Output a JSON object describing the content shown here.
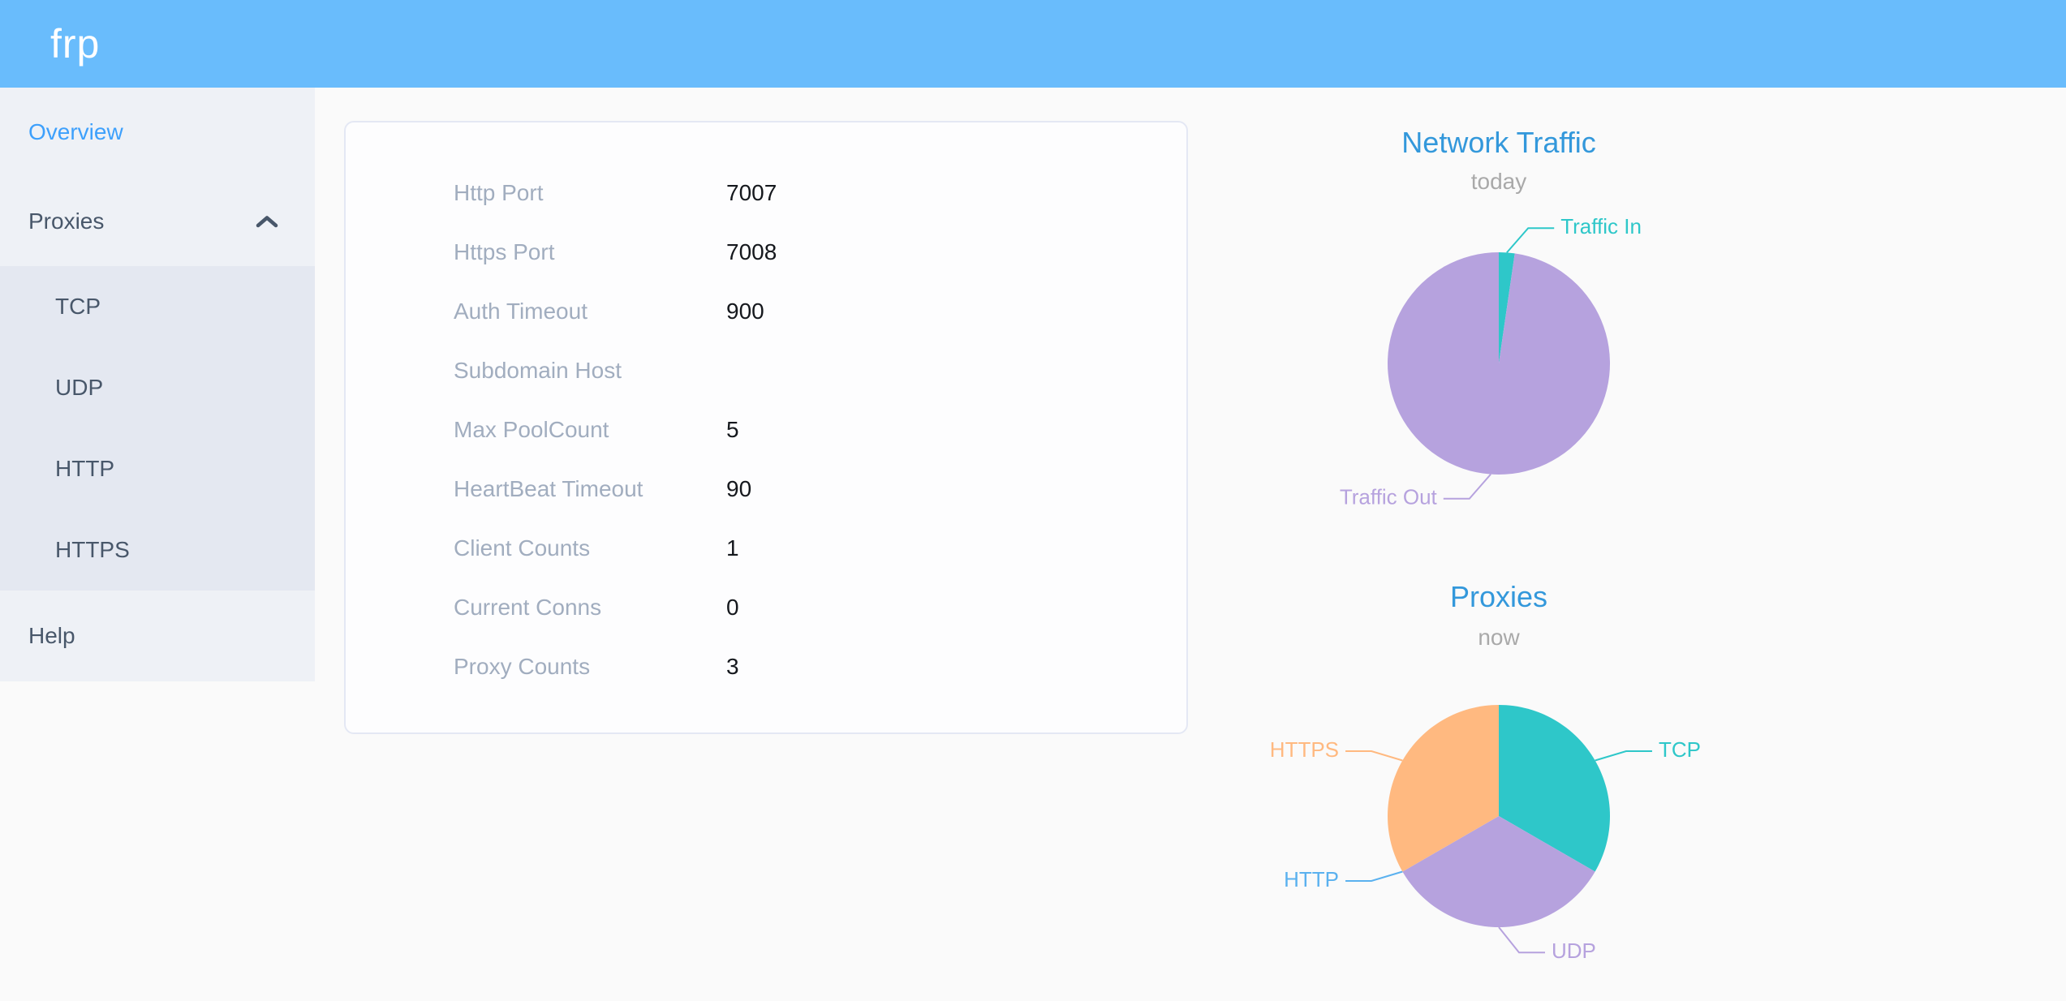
{
  "header": {
    "logo_text": "frp",
    "background_color": "#69bcfc"
  },
  "sidebar": {
    "items": [
      {
        "label": "Overview",
        "active": true
      },
      {
        "label": "Proxies",
        "expanded": true,
        "children": [
          "TCP",
          "UDP",
          "HTTP",
          "HTTPS"
        ]
      },
      {
        "label": "Help"
      }
    ]
  },
  "overview": {
    "rows": [
      {
        "label": "Http Port",
        "value": "7007"
      },
      {
        "label": "Https Port",
        "value": "7008"
      },
      {
        "label": "Auth Timeout",
        "value": "900"
      },
      {
        "label": "Subdomain Host",
        "value": ""
      },
      {
        "label": "Max PoolCount",
        "value": "5"
      },
      {
        "label": "HeartBeat Timeout",
        "value": "90"
      },
      {
        "label": "Client Counts",
        "value": "1"
      },
      {
        "label": "Current Conns",
        "value": "0"
      },
      {
        "label": "Proxy Counts",
        "value": "3"
      }
    ]
  },
  "chart_data": [
    {
      "type": "pie",
      "title": "Network Traffic",
      "subtitle": "today",
      "legend_position": "none",
      "label_style": "outside with leader lines, label color matches slice",
      "value_unit": "percent share of today's traffic (estimated from arc angles)",
      "series": [
        {
          "name": "Traffic In",
          "value": 2.3,
          "color": "#2ec7c9"
        },
        {
          "name": "Traffic Out",
          "value": 97.7,
          "color": "#b6a2de"
        }
      ]
    },
    {
      "type": "pie",
      "title": "Proxies",
      "subtitle": "now",
      "legend_position": "none",
      "label_style": "outside with leader lines, label color matches slice",
      "value_unit": "proxy count",
      "series": [
        {
          "name": "TCP",
          "value": 1,
          "color": "#2ec7c9"
        },
        {
          "name": "UDP",
          "value": 1,
          "color": "#b6a2de"
        },
        {
          "name": "HTTP",
          "value": 0,
          "color": "#5ab1ef"
        },
        {
          "name": "HTTPS",
          "value": 1,
          "color": "#ffb980"
        }
      ]
    }
  ],
  "theme_colors": {
    "header_bg": "#69bcfc",
    "sidebar_bg": "#eef1f6",
    "submenu_bg": "#e4e8f1",
    "menu_text": "#48576a",
    "menu_active": "#3da0fc",
    "card_label": "#a1adbf",
    "card_value": "#15181d",
    "chart_title": "#3398db",
    "chart_subtitle": "#a9a9a9",
    "page_bg": "#fafafa",
    "pie_teal": "#2ec7c9",
    "pie_purple": "#b6a2de",
    "pie_blue": "#5ab1ef",
    "pie_orange": "#ffb980"
  }
}
